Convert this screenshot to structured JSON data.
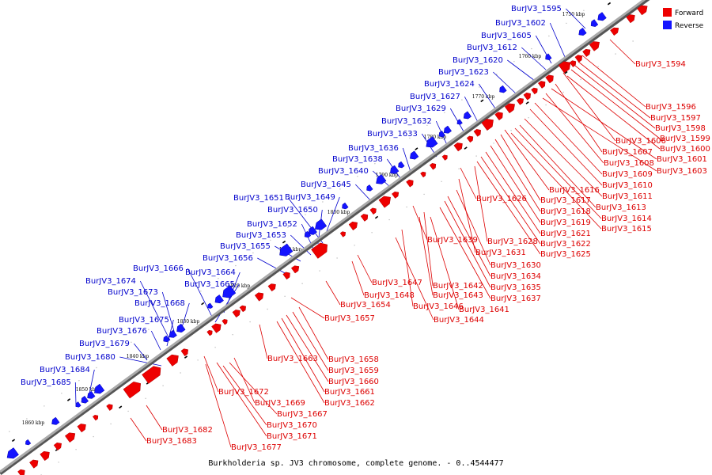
{
  "caption": "Burkholderia sp. JV3 chromosome, complete genome. - 0..4544477",
  "colors": {
    "forward": "#ee0000",
    "reverse": "#1414ff",
    "forward_label": "#dd0000",
    "reverse_label": "#0000cc",
    "axis": "#888888"
  },
  "legend": [
    {
      "label": "Forward",
      "color": "#ee0000"
    },
    {
      "label": "Reverse",
      "color": "#1414ff"
    }
  ],
  "kbp_marks": [
    "1750 kbp",
    "1760 kbp",
    "1770 kbp",
    "1780 kbp",
    "1790 kbp",
    "1800 kbp",
    "1810 kbp",
    "1820 kbp",
    "1830 kbp",
    "1840 kbp",
    "1850 kbp",
    "1860 kbp"
  ],
  "reverse_labels": [
    "BurJV3_1595",
    "BurJV3_1602",
    "BurJV3_1605",
    "BurJV3_1612",
    "BurJV3_1620",
    "BurJV3_1623",
    "BurJV3_1624",
    "BurJV3_1627",
    "BurJV3_1629",
    "BurJV3_1632",
    "BurJV3_1633",
    "BurJV3_1636",
    "BurJV3_1638",
    "BurJV3_1640",
    "BurJV3_1645",
    "BurJV3_1651",
    "BurJV3_1649",
    "BurJV3_1650",
    "BurJV3_1652",
    "BurJV3_1653",
    "BurJV3_1655",
    "BurJV3_1656",
    "BurJV3_1666",
    "BurJV3_1664",
    "BurJV3_1665",
    "BurJV3_1674",
    "BurJV3_1673",
    "BurJV3_1668",
    "BurJV3_1675",
    "BurJV3_1676",
    "BurJV3_1679",
    "BurJV3_1680",
    "BurJV3_1684",
    "BurJV3_1685"
  ],
  "forward_labels": [
    "BurJV3_1594",
    "BurJV3_1596",
    "BurJV3_1597",
    "BurJV3_1598",
    "BurJV3_1599",
    "BurJV3_1606",
    "BurJV3_1600",
    "BurJV3_1607",
    "BurJV3_1601",
    "BurJV3_1608",
    "BurJV3_1603",
    "BurJV3_1609",
    "BurJV3_1610",
    "BurJV3_1616",
    "BurJV3_1611",
    "BurJV3_1617",
    "BurJV3_1626",
    "BurJV3_1613",
    "BurJV3_1618",
    "BurJV3_1619",
    "BurJV3_1614",
    "BurJV3_1615",
    "BurJV3_1621",
    "BurJV3_1639",
    "BurJV3_1628",
    "BurJV3_1622",
    "BurJV3_1631",
    "BurJV3_1625",
    "BurJV3_1630",
    "BurJV3_1634",
    "BurJV3_1647",
    "BurJV3_1642",
    "BurJV3_1635",
    "BurJV3_1648",
    "BurJV3_1643",
    "BurJV3_1637",
    "BurJV3_1654",
    "BurJV3_1646",
    "BurJV3_1641",
    "BurJV3_1657",
    "BurJV3_1644",
    "BurJV3_1658",
    "BurJV3_1663",
    "BurJV3_1659",
    "BurJV3_1660",
    "BurJV3_1661",
    "BurJV3_1672",
    "BurJV3_1662",
    "BurJV3_1669",
    "BurJV3_1667",
    "BurJV3_1670",
    "BurJV3_1682",
    "BurJV3_1671",
    "BurJV3_1683",
    "BurJV3_1677"
  ]
}
